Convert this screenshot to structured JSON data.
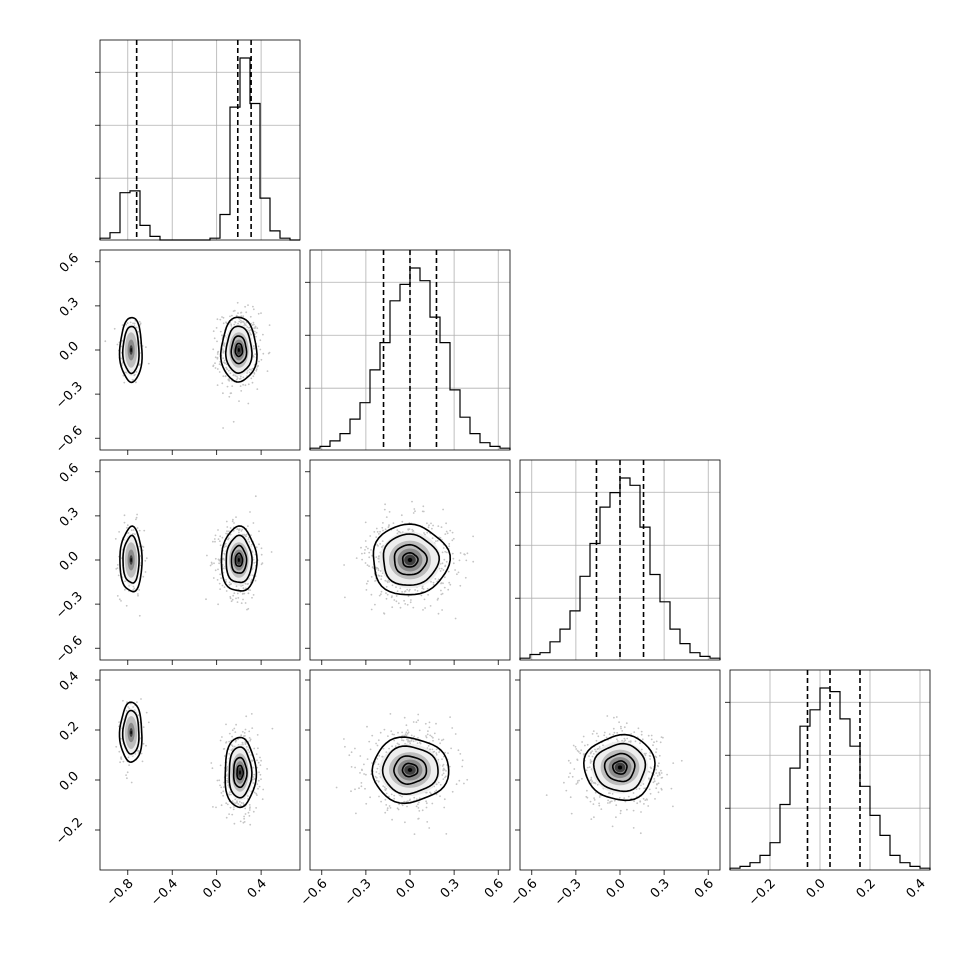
{
  "chart_data": {
    "type": "corner",
    "title": "",
    "params": [
      {
        "lim": [
          -1.05,
          0.75
        ],
        "ticks": [
          -0.8,
          -0.4,
          0.0,
          0.4
        ],
        "tick_labels": [
          "−0.8",
          "−0.4",
          "0.0",
          "0.4"
        ]
      },
      {
        "lim": [
          -0.68,
          0.68
        ],
        "ticks": [
          -0.6,
          -0.3,
          0.0,
          0.3,
          0.6
        ],
        "tick_labels": [
          "−0.6",
          "−0.3",
          "0.0",
          "0.3",
          "0.6"
        ]
      },
      {
        "lim": [
          -0.68,
          0.68
        ],
        "ticks": [
          -0.6,
          -0.3,
          0.0,
          0.3,
          0.6
        ],
        "tick_labels": [
          "−0.6",
          "−0.3",
          "0.0",
          "0.3",
          "0.6"
        ]
      },
      {
        "lim": [
          -0.36,
          0.44
        ],
        "ticks": [
          -0.2,
          0.0,
          0.2,
          0.4
        ],
        "tick_labels": [
          "−0.2",
          "0.0",
          "0.2",
          "0.4"
        ]
      }
    ],
    "histograms": [
      {
        "edges": [
          -1.05,
          -0.96,
          -0.87,
          -0.78,
          -0.69,
          -0.6,
          -0.51,
          -0.42,
          -0.33,
          -0.24,
          -0.15,
          -0.06,
          0.03,
          0.12,
          0.21,
          0.3,
          0.39,
          0.48,
          0.57,
          0.66,
          0.75
        ],
        "counts": [
          0.01,
          0.04,
          0.26,
          0.27,
          0.08,
          0.02,
          0.0,
          0.0,
          0.0,
          0.0,
          0.0,
          0.01,
          0.14,
          0.73,
          1.0,
          0.75,
          0.23,
          0.05,
          0.01,
          0.0
        ],
        "quantiles": [
          -0.72,
          0.19,
          0.31
        ]
      },
      {
        "edges": [
          -0.68,
          -0.612,
          -0.544,
          -0.476,
          -0.408,
          -0.34,
          -0.272,
          -0.204,
          -0.136,
          -0.068,
          0.0,
          0.068,
          0.136,
          0.204,
          0.272,
          0.34,
          0.408,
          0.476,
          0.544,
          0.612,
          0.68
        ],
        "counts": [
          0.01,
          0.02,
          0.05,
          0.09,
          0.17,
          0.26,
          0.44,
          0.59,
          0.82,
          0.91,
          1.0,
          0.93,
          0.73,
          0.59,
          0.33,
          0.18,
          0.09,
          0.04,
          0.02,
          0.01
        ],
        "quantiles": [
          -0.18,
          0.0,
          0.18
        ]
      },
      {
        "edges": [
          -0.68,
          -0.612,
          -0.544,
          -0.476,
          -0.408,
          -0.34,
          -0.272,
          -0.204,
          -0.136,
          -0.068,
          0.0,
          0.068,
          0.136,
          0.204,
          0.272,
          0.34,
          0.408,
          0.476,
          0.544,
          0.612,
          0.68
        ],
        "counts": [
          0.01,
          0.03,
          0.04,
          0.1,
          0.17,
          0.27,
          0.46,
          0.64,
          0.84,
          0.92,
          1.0,
          0.96,
          0.73,
          0.47,
          0.32,
          0.17,
          0.09,
          0.04,
          0.02,
          0.01
        ],
        "quantiles": [
          -0.16,
          0.0,
          0.16
        ]
      },
      {
        "edges": [
          -0.36,
          -0.32,
          -0.28,
          -0.24,
          -0.2,
          -0.16,
          -0.12,
          -0.08,
          -0.04,
          0.0,
          0.04,
          0.08,
          0.12,
          0.16,
          0.2,
          0.24,
          0.28,
          0.32,
          0.36,
          0.4,
          0.44
        ],
        "counts": [
          0.01,
          0.02,
          0.04,
          0.08,
          0.15,
          0.36,
          0.56,
          0.79,
          0.88,
          1.0,
          0.98,
          0.83,
          0.68,
          0.46,
          0.3,
          0.19,
          0.08,
          0.04,
          0.02,
          0.01
        ],
        "quantiles": [
          -0.05,
          0.04,
          0.16
        ]
      }
    ],
    "pairs": [
      {
        "row": 1,
        "col": 0,
        "modes": [
          {
            "mx": -0.77,
            "my": 0.0,
            "sx": 0.05,
            "sy": 0.11,
            "w": 0.25
          },
          {
            "mx": 0.2,
            "my": 0.0,
            "sx": 0.08,
            "sy": 0.11,
            "w": 0.75
          }
        ]
      },
      {
        "row": 2,
        "col": 0,
        "modes": [
          {
            "mx": -0.77,
            "my": 0.0,
            "sx": 0.05,
            "sy": 0.11,
            "w": 0.25
          },
          {
            "mx": 0.2,
            "my": 0.0,
            "sx": 0.08,
            "sy": 0.11,
            "w": 0.75
          }
        ]
      },
      {
        "row": 2,
        "col": 1,
        "modes": [
          {
            "mx": 0.0,
            "my": 0.0,
            "sx": 0.13,
            "sy": 0.12,
            "w": 1.0
          }
        ]
      },
      {
        "row": 3,
        "col": 0,
        "modes": [
          {
            "mx": -0.77,
            "my": 0.19,
            "sx": 0.05,
            "sy": 0.06,
            "w": 0.25
          },
          {
            "mx": 0.21,
            "my": 0.03,
            "sx": 0.07,
            "sy": 0.07,
            "w": 0.75
          }
        ]
      },
      {
        "row": 3,
        "col": 1,
        "modes": [
          {
            "mx": 0.0,
            "my": 0.04,
            "sx": 0.13,
            "sy": 0.065,
            "w": 1.0
          }
        ]
      },
      {
        "row": 3,
        "col": 2,
        "modes": [
          {
            "mx": 0.0,
            "my": 0.05,
            "sx": 0.12,
            "sy": 0.065,
            "w": 1.0
          }
        ]
      }
    ],
    "grid": true,
    "legend": "none"
  }
}
